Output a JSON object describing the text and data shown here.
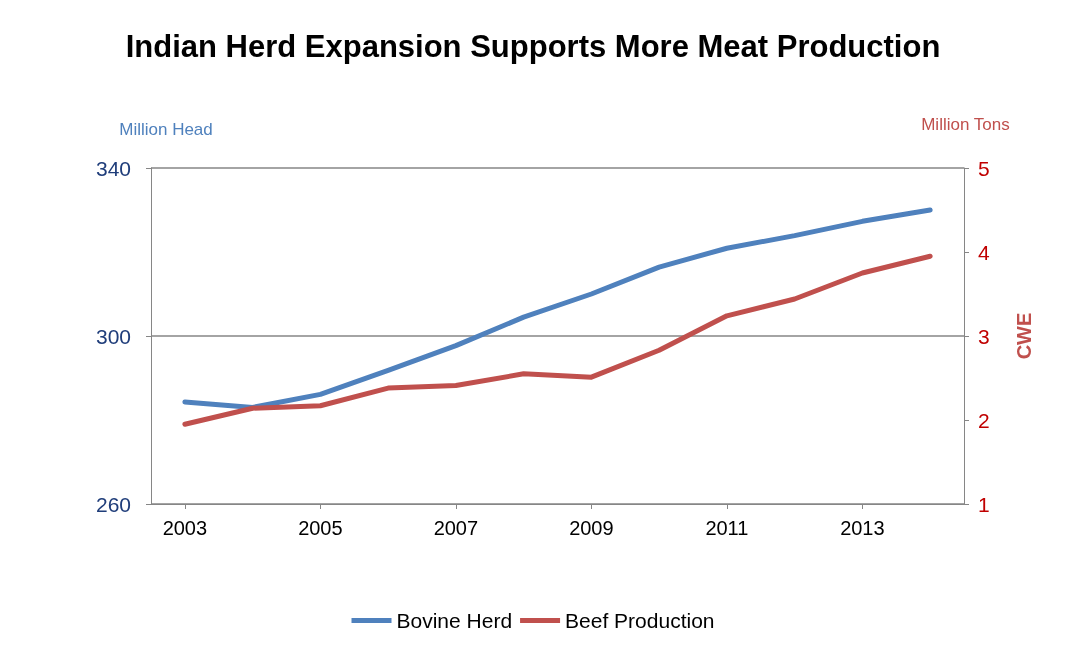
{
  "chart_data": {
    "type": "line",
    "title": "Indian Herd Expansion Supports More Meat Production",
    "ylabel": "Million Head",
    "y2label": "CWE",
    "annotations": [
      "Million Tons"
    ],
    "x": [
      2003,
      2004,
      2005,
      2006,
      2007,
      2008,
      2009,
      2010,
      2011,
      2012,
      2013,
      2014
    ],
    "series": [
      {
        "name": "Bovine Herd",
        "color": "#4f81bd",
        "values": [
          284.3,
          283,
          286.1,
          291.8,
          297.7,
          304.5,
          310,
          316.4,
          320.9,
          323.9,
          327.3,
          330
        ]
      },
      {
        "name": "Beef Production",
        "color": "#c0504d",
        "axis": "y2",
        "values": [
          1.95,
          2.14,
          2.17,
          2.38,
          2.41,
          2.55,
          2.51,
          2.83,
          3.24,
          3.44,
          3.75,
          3.95
        ]
      }
    ],
    "xlim": [
      2002.5,
      2014.5
    ],
    "xticks": [
      2003,
      2005,
      2007,
      2009,
      2011,
      2013
    ],
    "ylim": [
      260,
      340
    ],
    "yticks": [
      260,
      300,
      340
    ],
    "y2lim": [
      1,
      5
    ],
    "y2ticks": [
      1,
      2,
      3,
      4,
      5
    ],
    "grid": "y",
    "legend": "bottom",
    "marker": "none",
    "line_style": "solid"
  }
}
